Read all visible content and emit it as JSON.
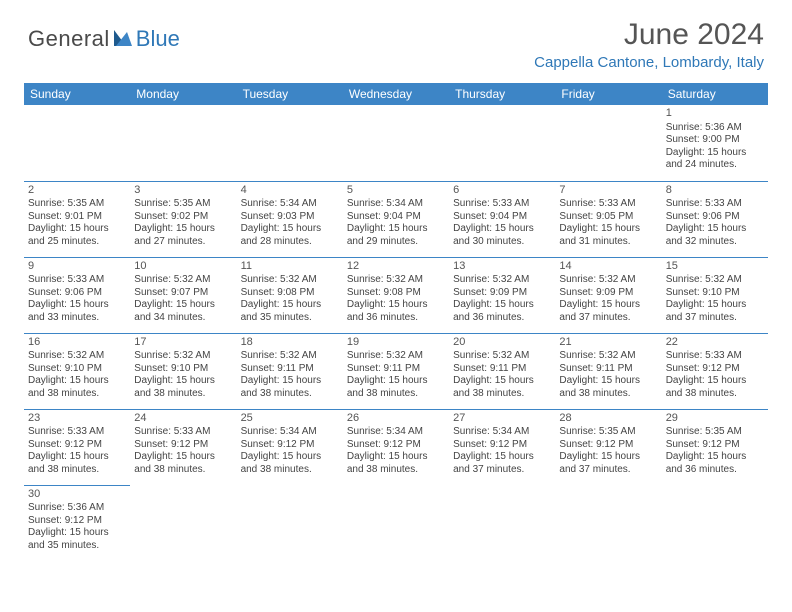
{
  "brand": {
    "part1": "General",
    "part2": "Blue"
  },
  "title": "June 2024",
  "location": "Cappella Cantone, Lombardy, Italy",
  "colors": {
    "header_bg": "#3d85c6",
    "accent": "#2f78b7",
    "text": "#444444",
    "title_text": "#555555"
  },
  "weekdays": [
    "Sunday",
    "Monday",
    "Tuesday",
    "Wednesday",
    "Thursday",
    "Friday",
    "Saturday"
  ],
  "layout": {
    "first_day_of_month_weekday_index": 6,
    "days_in_month": 30
  },
  "days": {
    "1": {
      "sunrise": "5:36 AM",
      "sunset": "9:00 PM",
      "daylight_hours": 15,
      "daylight_minutes": 24
    },
    "2": {
      "sunrise": "5:35 AM",
      "sunset": "9:01 PM",
      "daylight_hours": 15,
      "daylight_minutes": 25
    },
    "3": {
      "sunrise": "5:35 AM",
      "sunset": "9:02 PM",
      "daylight_hours": 15,
      "daylight_minutes": 27
    },
    "4": {
      "sunrise": "5:34 AM",
      "sunset": "9:03 PM",
      "daylight_hours": 15,
      "daylight_minutes": 28
    },
    "5": {
      "sunrise": "5:34 AM",
      "sunset": "9:04 PM",
      "daylight_hours": 15,
      "daylight_minutes": 29
    },
    "6": {
      "sunrise": "5:33 AM",
      "sunset": "9:04 PM",
      "daylight_hours": 15,
      "daylight_minutes": 30
    },
    "7": {
      "sunrise": "5:33 AM",
      "sunset": "9:05 PM",
      "daylight_hours": 15,
      "daylight_minutes": 31
    },
    "8": {
      "sunrise": "5:33 AM",
      "sunset": "9:06 PM",
      "daylight_hours": 15,
      "daylight_minutes": 32
    },
    "9": {
      "sunrise": "5:33 AM",
      "sunset": "9:06 PM",
      "daylight_hours": 15,
      "daylight_minutes": 33
    },
    "10": {
      "sunrise": "5:32 AM",
      "sunset": "9:07 PM",
      "daylight_hours": 15,
      "daylight_minutes": 34
    },
    "11": {
      "sunrise": "5:32 AM",
      "sunset": "9:08 PM",
      "daylight_hours": 15,
      "daylight_minutes": 35
    },
    "12": {
      "sunrise": "5:32 AM",
      "sunset": "9:08 PM",
      "daylight_hours": 15,
      "daylight_minutes": 36
    },
    "13": {
      "sunrise": "5:32 AM",
      "sunset": "9:09 PM",
      "daylight_hours": 15,
      "daylight_minutes": 36
    },
    "14": {
      "sunrise": "5:32 AM",
      "sunset": "9:09 PM",
      "daylight_hours": 15,
      "daylight_minutes": 37
    },
    "15": {
      "sunrise": "5:32 AM",
      "sunset": "9:10 PM",
      "daylight_hours": 15,
      "daylight_minutes": 37
    },
    "16": {
      "sunrise": "5:32 AM",
      "sunset": "9:10 PM",
      "daylight_hours": 15,
      "daylight_minutes": 38
    },
    "17": {
      "sunrise": "5:32 AM",
      "sunset": "9:10 PM",
      "daylight_hours": 15,
      "daylight_minutes": 38
    },
    "18": {
      "sunrise": "5:32 AM",
      "sunset": "9:11 PM",
      "daylight_hours": 15,
      "daylight_minutes": 38
    },
    "19": {
      "sunrise": "5:32 AM",
      "sunset": "9:11 PM",
      "daylight_hours": 15,
      "daylight_minutes": 38
    },
    "20": {
      "sunrise": "5:32 AM",
      "sunset": "9:11 PM",
      "daylight_hours": 15,
      "daylight_minutes": 38
    },
    "21": {
      "sunrise": "5:32 AM",
      "sunset": "9:11 PM",
      "daylight_hours": 15,
      "daylight_minutes": 38
    },
    "22": {
      "sunrise": "5:33 AM",
      "sunset": "9:12 PM",
      "daylight_hours": 15,
      "daylight_minutes": 38
    },
    "23": {
      "sunrise": "5:33 AM",
      "sunset": "9:12 PM",
      "daylight_hours": 15,
      "daylight_minutes": 38
    },
    "24": {
      "sunrise": "5:33 AM",
      "sunset": "9:12 PM",
      "daylight_hours": 15,
      "daylight_minutes": 38
    },
    "25": {
      "sunrise": "5:34 AM",
      "sunset": "9:12 PM",
      "daylight_hours": 15,
      "daylight_minutes": 38
    },
    "26": {
      "sunrise": "5:34 AM",
      "sunset": "9:12 PM",
      "daylight_hours": 15,
      "daylight_minutes": 38
    },
    "27": {
      "sunrise": "5:34 AM",
      "sunset": "9:12 PM",
      "daylight_hours": 15,
      "daylight_minutes": 37
    },
    "28": {
      "sunrise": "5:35 AM",
      "sunset": "9:12 PM",
      "daylight_hours": 15,
      "daylight_minutes": 37
    },
    "29": {
      "sunrise": "5:35 AM",
      "sunset": "9:12 PM",
      "daylight_hours": 15,
      "daylight_minutes": 36
    },
    "30": {
      "sunrise": "5:36 AM",
      "sunset": "9:12 PM",
      "daylight_hours": 15,
      "daylight_minutes": 35
    }
  },
  "labels": {
    "sunrise_prefix": "Sunrise: ",
    "sunset_prefix": "Sunset: ",
    "daylight_prefix": "Daylight: ",
    "hours_word": " hours",
    "and_word": "and ",
    "minutes_word": " minutes."
  }
}
